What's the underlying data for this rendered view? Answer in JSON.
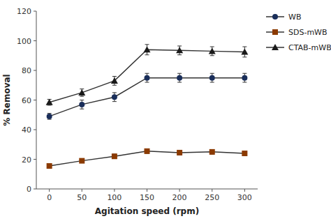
{
  "chart_data": {
    "type": "line",
    "xlabel": "Agitation speed (rpm)",
    "ylabel": "% Removal",
    "x": [
      0,
      50,
      100,
      150,
      200,
      250,
      300
    ],
    "xlim": [
      -20,
      320
    ],
    "xticks": [
      0,
      50,
      100,
      150,
      200,
      250,
      300
    ],
    "ylim": [
      0,
      120
    ],
    "yticks": [
      0,
      20,
      40,
      60,
      80,
      100,
      120
    ],
    "grid": false,
    "legend": "right",
    "series": [
      {
        "name": "WB",
        "color": "#1a2e5a",
        "marker": "circle",
        "values": [
          49,
          57,
          62,
          75,
          75,
          75,
          75
        ],
        "errors": [
          2,
          3,
          3,
          3,
          3,
          3,
          3
        ]
      },
      {
        "name": "SDS-mWB",
        "color": "#8b3a00",
        "marker": "square",
        "values": [
          15.5,
          19,
          22,
          25.5,
          24.5,
          25,
          24
        ],
        "errors": [
          1,
          1,
          1.5,
          1.5,
          1.5,
          1.5,
          1.5
        ]
      },
      {
        "name": "CTAB-mWB",
        "color": "#1a1a1a",
        "marker": "triangle",
        "values": [
          58.5,
          65,
          73,
          94,
          93.5,
          93,
          92.5
        ],
        "errors": [
          2,
          2.5,
          3,
          3.5,
          3,
          3,
          3.5
        ]
      }
    ]
  }
}
